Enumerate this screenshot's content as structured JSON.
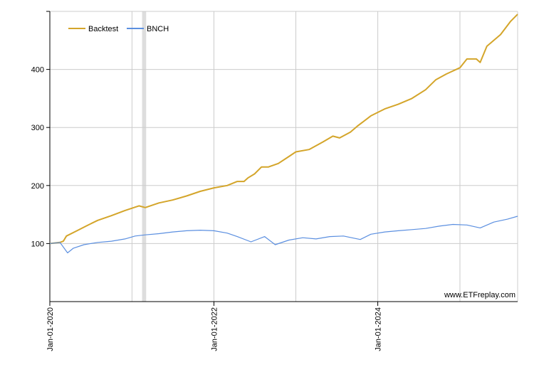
{
  "chart_data": {
    "type": "line",
    "title": "",
    "xlabel": "",
    "ylabel": "",
    "x_range": [
      "2020-01-01",
      "2025-09-15"
    ],
    "ylim": [
      0,
      500
    ],
    "y_ticks": [
      100,
      200,
      300,
      400
    ],
    "x_ticks": [
      {
        "date": "2020-01-01",
        "label": "Jan-01-2020"
      },
      {
        "date": "2022-01-01",
        "label": "Jan-01-2022"
      },
      {
        "date": "2024-01-01",
        "label": "Jan-01-2024"
      }
    ],
    "x_minor_gridlines": [
      "2021-01-01",
      "2023-01-01",
      "2025-01-01"
    ],
    "grid": true,
    "legend_position": "top-left",
    "shaded_band": {
      "start": "2021-02-15",
      "end": "2021-03-05",
      "color": "#dddddd"
    },
    "watermark": "www.ETFreplay.com",
    "series": [
      {
        "name": "Backtest",
        "color": "#d4a52a",
        "points": [
          [
            "2020-01-01",
            100
          ],
          [
            "2020-02-15",
            102
          ],
          [
            "2020-03-01",
            104
          ],
          [
            "2020-03-15",
            113
          ],
          [
            "2020-05-01",
            122
          ],
          [
            "2020-06-15",
            131
          ],
          [
            "2020-08-01",
            140
          ],
          [
            "2020-10-01",
            148
          ],
          [
            "2020-12-01",
            157
          ],
          [
            "2021-02-01",
            165
          ],
          [
            "2021-03-01",
            162
          ],
          [
            "2021-05-01",
            170
          ],
          [
            "2021-07-01",
            175
          ],
          [
            "2021-09-01",
            182
          ],
          [
            "2021-11-01",
            190
          ],
          [
            "2022-01-01",
            196
          ],
          [
            "2022-03-01",
            200
          ],
          [
            "2022-04-15",
            207
          ],
          [
            "2022-05-15",
            207
          ],
          [
            "2022-06-01",
            213
          ],
          [
            "2022-07-01",
            220
          ],
          [
            "2022-08-01",
            232
          ],
          [
            "2022-09-01",
            232
          ],
          [
            "2022-10-15",
            238
          ],
          [
            "2022-12-01",
            250
          ],
          [
            "2023-01-01",
            258
          ],
          [
            "2023-03-01",
            262
          ],
          [
            "2023-05-01",
            275
          ],
          [
            "2023-06-15",
            285
          ],
          [
            "2023-07-15",
            282
          ],
          [
            "2023-09-01",
            292
          ],
          [
            "2023-10-01",
            302
          ],
          [
            "2023-12-01",
            320
          ],
          [
            "2024-02-01",
            332
          ],
          [
            "2024-04-01",
            340
          ],
          [
            "2024-06-01",
            350
          ],
          [
            "2024-08-01",
            365
          ],
          [
            "2024-09-15",
            382
          ],
          [
            "2024-11-01",
            392
          ],
          [
            "2025-01-01",
            403
          ],
          [
            "2025-02-01",
            418
          ],
          [
            "2025-03-15",
            418
          ],
          [
            "2025-04-01",
            412
          ],
          [
            "2025-05-01",
            440
          ],
          [
            "2025-07-01",
            460
          ],
          [
            "2025-08-15",
            483
          ],
          [
            "2025-09-15",
            495
          ]
        ]
      },
      {
        "name": "BNCH",
        "color": "#5b8fe0",
        "points": [
          [
            "2020-01-01",
            100
          ],
          [
            "2020-02-15",
            102
          ],
          [
            "2020-03-20",
            84
          ],
          [
            "2020-04-15",
            92
          ],
          [
            "2020-06-01",
            98
          ],
          [
            "2020-08-01",
            102
          ],
          [
            "2020-10-01",
            104
          ],
          [
            "2020-12-01",
            108
          ],
          [
            "2021-01-15",
            113
          ],
          [
            "2021-03-01",
            115
          ],
          [
            "2021-05-01",
            117
          ],
          [
            "2021-07-01",
            120
          ],
          [
            "2021-09-01",
            122
          ],
          [
            "2021-11-01",
            123
          ],
          [
            "2022-01-01",
            122
          ],
          [
            "2022-03-01",
            118
          ],
          [
            "2022-04-15",
            112
          ],
          [
            "2022-06-15",
            103
          ],
          [
            "2022-08-15",
            112
          ],
          [
            "2022-10-01",
            98
          ],
          [
            "2022-12-01",
            106
          ],
          [
            "2023-02-01",
            110
          ],
          [
            "2023-04-01",
            108
          ],
          [
            "2023-06-01",
            112
          ],
          [
            "2023-08-01",
            113
          ],
          [
            "2023-10-15",
            107
          ],
          [
            "2023-12-01",
            116
          ],
          [
            "2024-02-01",
            120
          ],
          [
            "2024-04-01",
            122
          ],
          [
            "2024-06-01",
            124
          ],
          [
            "2024-08-01",
            126
          ],
          [
            "2024-10-01",
            130
          ],
          [
            "2024-12-01",
            133
          ],
          [
            "2025-02-01",
            132
          ],
          [
            "2025-04-01",
            127
          ],
          [
            "2025-06-01",
            137
          ],
          [
            "2025-08-01",
            142
          ],
          [
            "2025-09-15",
            147
          ]
        ]
      }
    ]
  }
}
